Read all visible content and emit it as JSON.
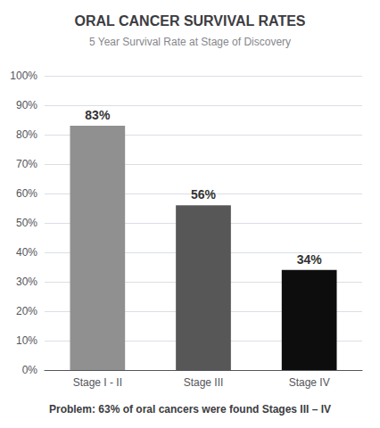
{
  "chart_data": {
    "type": "bar",
    "title": "ORAL CANCER SURVIVAL RATES",
    "subtitle": "5 Year Survival Rate at Stage of Discovery",
    "annotations": [
      "Problem: 63% of oral cancers were found Stages III – IV"
    ],
    "categories": [
      "Stage I - II",
      "Stage III",
      "Stage IV"
    ],
    "values": [
      83,
      56,
      34
    ],
    "value_labels": [
      "83%",
      "56%",
      "34%"
    ],
    "data_labels": true,
    "colors": [
      "#909090",
      "#575757",
      "#0d0d0d"
    ],
    "ylim": [
      0,
      100
    ],
    "yticks": [
      {
        "value": 0,
        "label": "0%"
      },
      {
        "value": 10,
        "label": "10%"
      },
      {
        "value": 20,
        "label": "20%"
      },
      {
        "value": 30,
        "label": "30%"
      },
      {
        "value": 40,
        "label": "40%"
      },
      {
        "value": 50,
        "label": "50%"
      },
      {
        "value": 60,
        "label": "60%"
      },
      {
        "value": 70,
        "label": "70%"
      },
      {
        "value": 80,
        "label": "80%"
      },
      {
        "value": 90,
        "label": "90%"
      },
      {
        "value": 100,
        "label": "100%"
      }
    ],
    "grid": true
  }
}
